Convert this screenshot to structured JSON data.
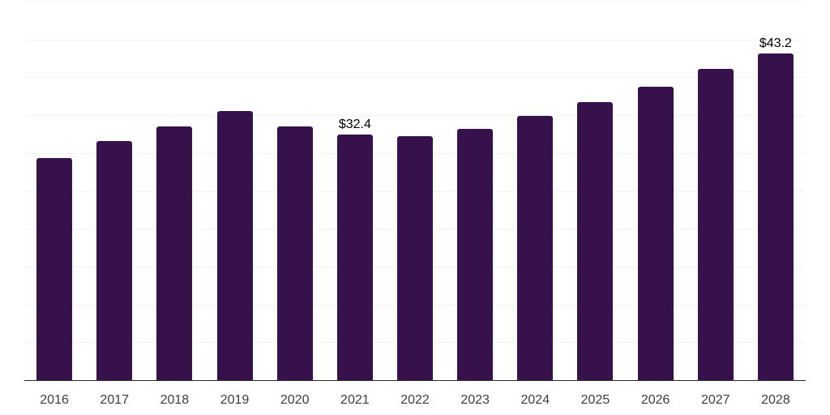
{
  "chart_data": {
    "type": "bar",
    "title": "",
    "xlabel": "",
    "ylabel": "",
    "categories": [
      "2016",
      "2017",
      "2018",
      "2019",
      "2020",
      "2021",
      "2022",
      "2023",
      "2024",
      "2025",
      "2026",
      "2027",
      "2028"
    ],
    "values": [
      29.3,
      31.6,
      33.5,
      35.5,
      33.5,
      32.4,
      32.2,
      33.2,
      34.9,
      36.7,
      38.8,
      41.1,
      43.2
    ],
    "data_labels": [
      {
        "category": "2021",
        "text": "$32.4"
      },
      {
        "category": "2028",
        "text": "$43.2"
      }
    ],
    "ylim": [
      0,
      50
    ],
    "gridline_step": 5,
    "grid": "horizontal-only",
    "legend": "none",
    "y_tick_labels_visible": false,
    "colors": {
      "bar": "#37114B",
      "axis_line": "#2b2b2b",
      "gridline": "#f2f2f2",
      "x_tick_label": "#3d3d3d",
      "value_label": "#000000",
      "background": "#ffffff"
    }
  }
}
